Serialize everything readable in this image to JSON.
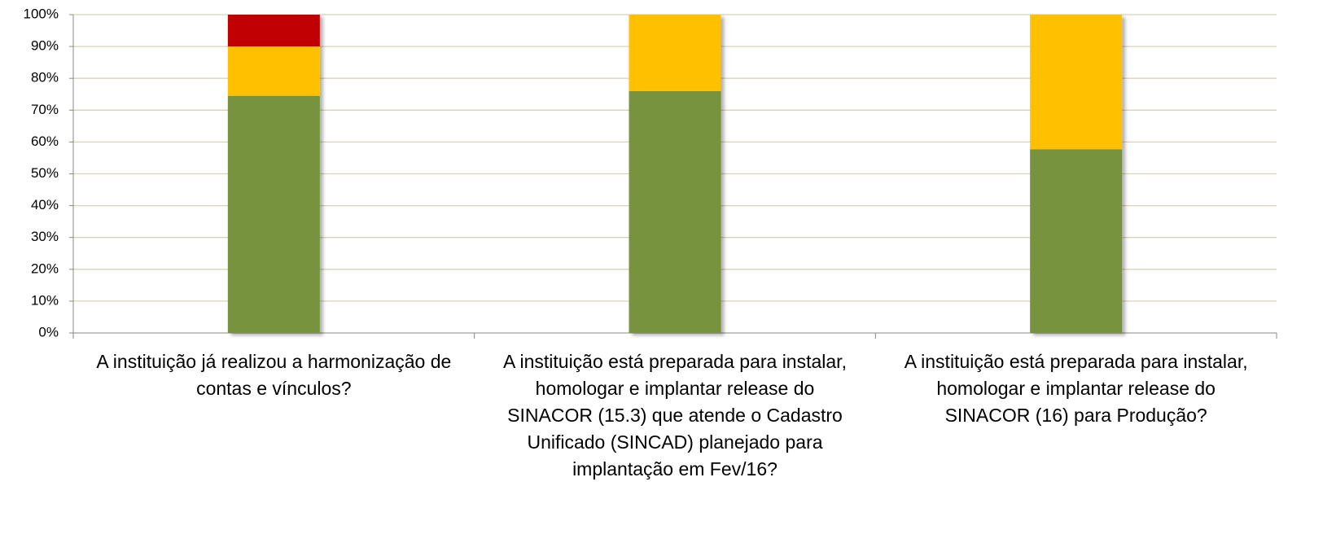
{
  "chart_data": {
    "type": "stacked_bar",
    "categories": [
      "A instituição já realizou a harmonização de contas e vínculos?",
      "A instituição está preparada para instalar,  homologar e implantar release do SINACOR (15.3) que atende o Cadastro Unificado (SINCAD) planejado para implantação em Fev/16?",
      "A instituição está preparada para instalar, homologar e implantar release do SINACOR (16) para Produção?"
    ],
    "series": [
      {
        "color": "#77933c",
        "values": [
          74.5,
          76,
          57.7
        ]
      },
      {
        "color": "#ffc000",
        "values": [
          15.5,
          24,
          42.3
        ]
      },
      {
        "color": "#c00000",
        "values": [
          10,
          0,
          0
        ]
      }
    ],
    "ylim": [
      0,
      100
    ],
    "yticks": [
      {
        "value": 0,
        "label": "0%"
      },
      {
        "value": 10,
        "label": "10%"
      },
      {
        "value": 20,
        "label": "20%"
      },
      {
        "value": 30,
        "label": "30%"
      },
      {
        "value": 40,
        "label": "40%"
      },
      {
        "value": 50,
        "label": "50%"
      },
      {
        "value": 60,
        "label": "60%"
      },
      {
        "value": 70,
        "label": "70%"
      },
      {
        "value": 80,
        "label": "80%"
      },
      {
        "value": 90,
        "label": "90%"
      },
      {
        "value": 100,
        "label": "100%"
      }
    ],
    "grid": true
  }
}
